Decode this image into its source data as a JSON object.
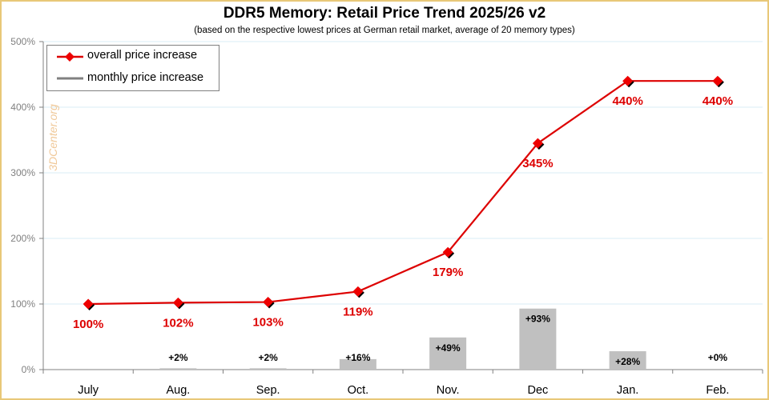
{
  "title": "DDR5 Memory: Retail Price Trend 2025/26 v2",
  "subtitle": "(based on the respective lowest prices at German retail market, average of 20 memory types)",
  "watermark": "3DCenter.org",
  "colors": {
    "line": "#dd0000",
    "bar": "#c0c0c0",
    "border": "#e8c878",
    "grid": "#d8eef4"
  },
  "chart_data": {
    "type": "bar+line",
    "categories": [
      "July",
      "Aug.",
      "Sep.",
      "Oct.",
      "Nov.",
      "Dec",
      "Jan.",
      "Feb."
    ],
    "y_ticks": [
      "0%",
      "100%",
      "200%",
      "300%",
      "400%",
      "500%"
    ],
    "ylim": [
      0,
      500
    ],
    "series": [
      {
        "name": "overall price increase",
        "type": "line",
        "values": [
          100,
          102,
          103,
          119,
          179,
          345,
          440,
          440
        ],
        "labels": [
          "100%",
          "102%",
          "103%",
          "119%",
          "179%",
          "345%",
          "440%",
          "440%"
        ]
      },
      {
        "name": "monthly price increase",
        "type": "bar",
        "values": [
          null,
          2,
          2,
          16,
          49,
          93,
          28,
          0
        ],
        "labels": [
          "",
          "+2%",
          "+2%",
          "+16%",
          "+49%",
          "+93%",
          "+28%",
          "+0%"
        ]
      }
    ],
    "legend": "top-left",
    "grid": true
  }
}
